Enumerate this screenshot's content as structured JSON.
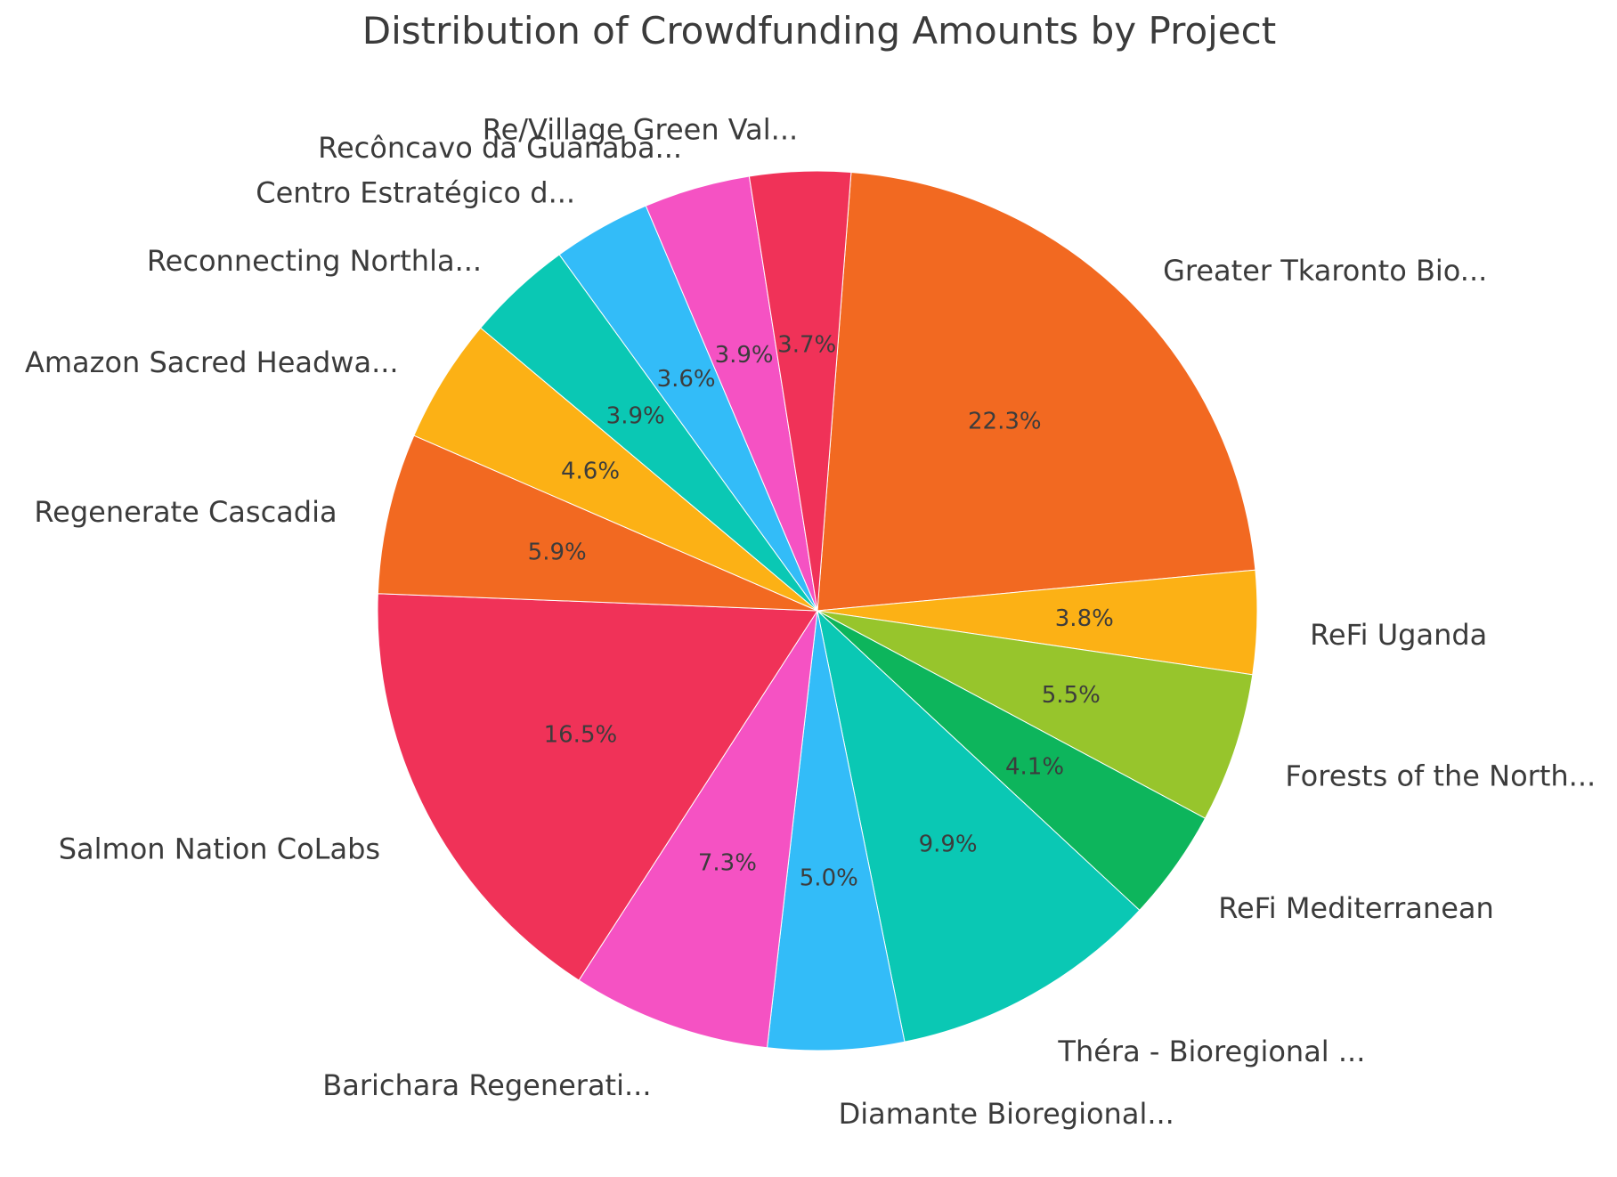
{
  "title": "Distribution of Crowdfunding Amounts by Project",
  "chart_data": {
    "type": "pie",
    "title": "Distribution of Crowdfunding Amounts by Project",
    "categories": [
      "Greater Tkaronto Bio...",
      "ReFi Uganda",
      "Forests of the North...",
      "ReFi Mediterranean",
      "Théra - Bioregional ...",
      "Diamante Bioregional...",
      "Barichara Regenerati...",
      "Salmon Nation CoLabs",
      "Regenerate Cascadia",
      "Amazon Sacred Headwa...",
      "Reconnecting Northla...",
      "Centro Estratégico d...",
      "Recôncavo da Guanaba...",
      "Re/Village Green Val..."
    ],
    "values_pct": [
      22.3,
      3.8,
      5.5,
      4.1,
      9.9,
      5.0,
      7.3,
      16.5,
      5.9,
      4.6,
      3.9,
      3.6,
      3.9,
      3.7
    ],
    "slices": [
      {
        "label": "Greater Tkaronto Bio...",
        "pct": 22.3,
        "pct_label": "22.3%",
        "color": "#F26921"
      },
      {
        "label": "ReFi Uganda",
        "pct": 3.8,
        "pct_label": "3.8%",
        "color": "#FCB115"
      },
      {
        "label": "Forests of the North...",
        "pct": 5.5,
        "pct_label": "5.5%",
        "color": "#97C52C"
      },
      {
        "label": "ReFi Mediterranean",
        "pct": 4.1,
        "pct_label": "4.1%",
        "color": "#0DB55C"
      },
      {
        "label": "Théra - Bioregional ...",
        "pct": 9.9,
        "pct_label": "9.9%",
        "color": "#0AC8B4"
      },
      {
        "label": "Diamante Bioregional...",
        "pct": 5.0,
        "pct_label": "5.0%",
        "color": "#33BCF8"
      },
      {
        "label": "Barichara Regenerati...",
        "pct": 7.3,
        "pct_label": "7.3%",
        "color": "#F552C3"
      },
      {
        "label": "Salmon Nation CoLabs",
        "pct": 16.5,
        "pct_label": "16.5%",
        "color": "#F03258"
      },
      {
        "label": "Regenerate Cascadia",
        "pct": 5.9,
        "pct_label": "5.9%",
        "color": "#F26921"
      },
      {
        "label": "Amazon Sacred Headwa...",
        "pct": 4.6,
        "pct_label": "4.6%",
        "color": "#FCB115"
      },
      {
        "label": "Reconnecting Northla...",
        "pct": 3.9,
        "pct_label": "3.9%",
        "color": "#0AC8B4"
      },
      {
        "label": "Centro Estratégico d...",
        "pct": 3.6,
        "pct_label": "3.6%",
        "color": "#33BCF8"
      },
      {
        "label": "Recôncavo da Guanaba...",
        "pct": 3.9,
        "pct_label": "3.9%",
        "color": "#F552C3"
      },
      {
        "label": "Re/Village Green Val...",
        "pct": 3.7,
        "pct_label": "3.7%",
        "color": "#F03258"
      }
    ],
    "start_angle_deg": 85.6,
    "direction": "clockwise",
    "legend": "none",
    "labels_layout": "category names outside rim, percentage labels inside wedges",
    "text_color": "#3B3B3B",
    "background_color": "#FFFFFF"
  }
}
